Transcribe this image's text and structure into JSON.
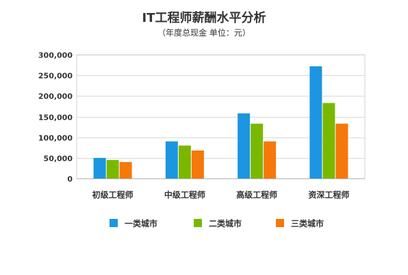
{
  "chart_data": {
    "type": "bar",
    "title": "IT工程师薪酬水平分析",
    "subtitle": "（年度总现金 单位：元）",
    "xlabel": "",
    "ylabel": "",
    "categories": [
      "初级工程师",
      "中级工程师",
      "高级工程师",
      "资深工程师"
    ],
    "series": [
      {
        "name": "一类城市",
        "color": "#1c96e0",
        "values": [
          50000,
          90000,
          158000,
          272000
        ]
      },
      {
        "name": "二类城市",
        "color": "#7ab800",
        "values": [
          45000,
          80000,
          133000,
          183000
        ]
      },
      {
        "name": "三类城市",
        "color": "#f5780a",
        "values": [
          40000,
          68000,
          90000,
          133000
        ]
      }
    ],
    "ylim": [
      0,
      300000
    ],
    "yticks": [
      0,
      50000,
      100000,
      150000,
      200000,
      250000,
      300000
    ],
    "ytick_labels": [
      "0",
      "50,000",
      "100,000",
      "150,000",
      "200,000",
      "250,000",
      "300,000"
    ],
    "grid": true,
    "legend_position": "bottom"
  }
}
